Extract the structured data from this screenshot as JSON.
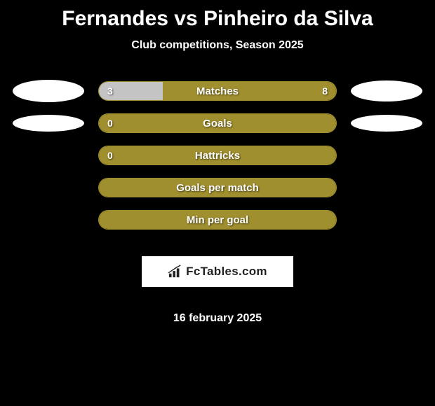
{
  "title": "Fernandes vs Pinheiro da Silva",
  "subtitle": "Club competitions, Season 2025",
  "date": "16 february 2025",
  "logo_text": "FcTables.com",
  "colors": {
    "background": "#000000",
    "bar_border": "#a08f2e",
    "bar_fill_olive": "#a08f2e",
    "bar_fill_light": "#c4c4c4",
    "avatar_bg": "#ffffff",
    "text": "#ffffff",
    "logo_bg": "#ffffff",
    "logo_text": "#222222"
  },
  "stats": [
    {
      "label": "Matches",
      "left_value": "3",
      "right_value": "8",
      "left_fill_pct": 27,
      "left_fill_color": "#c4c4c4",
      "right_fill_color": "#a08f2e",
      "has_left_avatar": true,
      "has_right_avatar": true,
      "left_avatar_class": "avatar-left-1",
      "right_avatar_class": "avatar-right-1"
    },
    {
      "label": "Goals",
      "left_value": "0",
      "right_value": "",
      "left_fill_pct": 100,
      "left_fill_color": "#a08f2e",
      "right_fill_color": "#a08f2e",
      "has_left_avatar": true,
      "has_right_avatar": true,
      "left_avatar_class": "avatar-left-2",
      "right_avatar_class": "avatar-right-2"
    },
    {
      "label": "Hattricks",
      "left_value": "0",
      "right_value": "",
      "left_fill_pct": 100,
      "left_fill_color": "#a08f2e",
      "right_fill_color": "#a08f2e",
      "has_left_avatar": false,
      "has_right_avatar": false
    },
    {
      "label": "Goals per match",
      "left_value": "",
      "right_value": "",
      "left_fill_pct": 100,
      "left_fill_color": "#a08f2e",
      "right_fill_color": "#a08f2e",
      "has_left_avatar": false,
      "has_right_avatar": false
    },
    {
      "label": "Min per goal",
      "left_value": "",
      "right_value": "",
      "left_fill_pct": 100,
      "left_fill_color": "#a08f2e",
      "right_fill_color": "#a08f2e",
      "has_left_avatar": false,
      "has_right_avatar": false
    }
  ]
}
